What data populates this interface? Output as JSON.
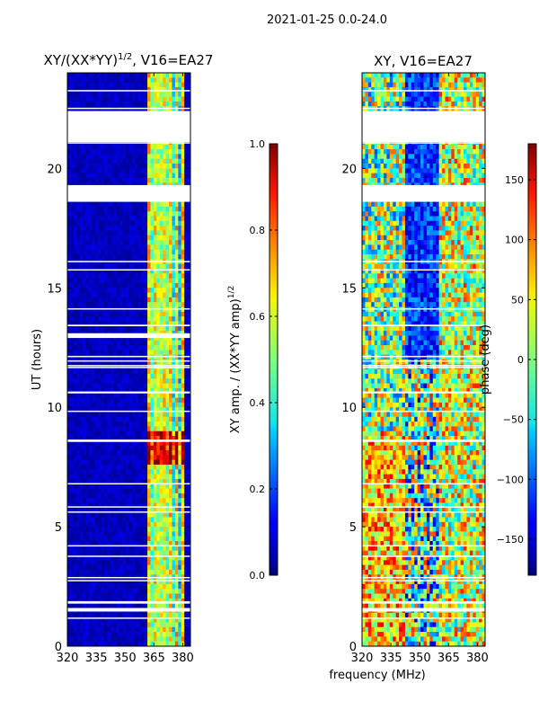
{
  "figure": {
    "suptitle": "2021-01-25 0.0-24.0",
    "xlabel_shared": "frequency (MHz)"
  },
  "chart_data": [
    {
      "type": "heatmap",
      "title_main": "XY/(XX*YY)",
      "title_sup": "1/2",
      "title_suffix": ", V16=EA27",
      "ylabel": "UT (hours)",
      "xlim": [
        320,
        384
      ],
      "ylim": [
        0,
        24
      ],
      "xticks": [
        320,
        335,
        350,
        365,
        380
      ],
      "yticks": [
        0,
        5,
        10,
        15,
        20
      ],
      "gap_bands_hours": [
        [
          21.1,
          22.4
        ],
        [
          18.6,
          19.3
        ],
        [
          12.9,
          13.1
        ],
        [
          8.55,
          8.65
        ],
        [
          1.45,
          1.6
        ]
      ],
      "active_band_mhz": [
        361,
        381
      ],
      "colorbar": {
        "label_main": "XY amp. / (XX*YY amp)",
        "label_sup": "1/2",
        "ticks": [
          0.0,
          0.2,
          0.4,
          0.6,
          0.8,
          1.0
        ],
        "tick_labels": [
          "0.0",
          "0.2",
          "0.4",
          "0.6",
          "0.8",
          "1.0"
        ],
        "range": [
          0,
          1
        ]
      }
    },
    {
      "type": "heatmap",
      "title": "XY, V16=EA27",
      "ylabel": "",
      "xlim": [
        320,
        384
      ],
      "ylim": [
        0,
        24
      ],
      "xticks": [
        320,
        335,
        350,
        365,
        380
      ],
      "yticks": [
        0,
        5,
        10,
        15,
        20
      ],
      "gap_bands_hours": [
        [
          21.1,
          22.4
        ],
        [
          18.6,
          19.3
        ],
        [
          8.55,
          8.65
        ],
        [
          1.45,
          1.6
        ]
      ],
      "colorbar": {
        "label": "phase (deg)",
        "ticks": [
          -150,
          -100,
          -50,
          0,
          50,
          100,
          150
        ],
        "tick_labels": [
          "−150",
          "−100",
          "−50",
          "0",
          "50",
          "100",
          "150"
        ],
        "range": [
          -180,
          180
        ]
      }
    }
  ]
}
